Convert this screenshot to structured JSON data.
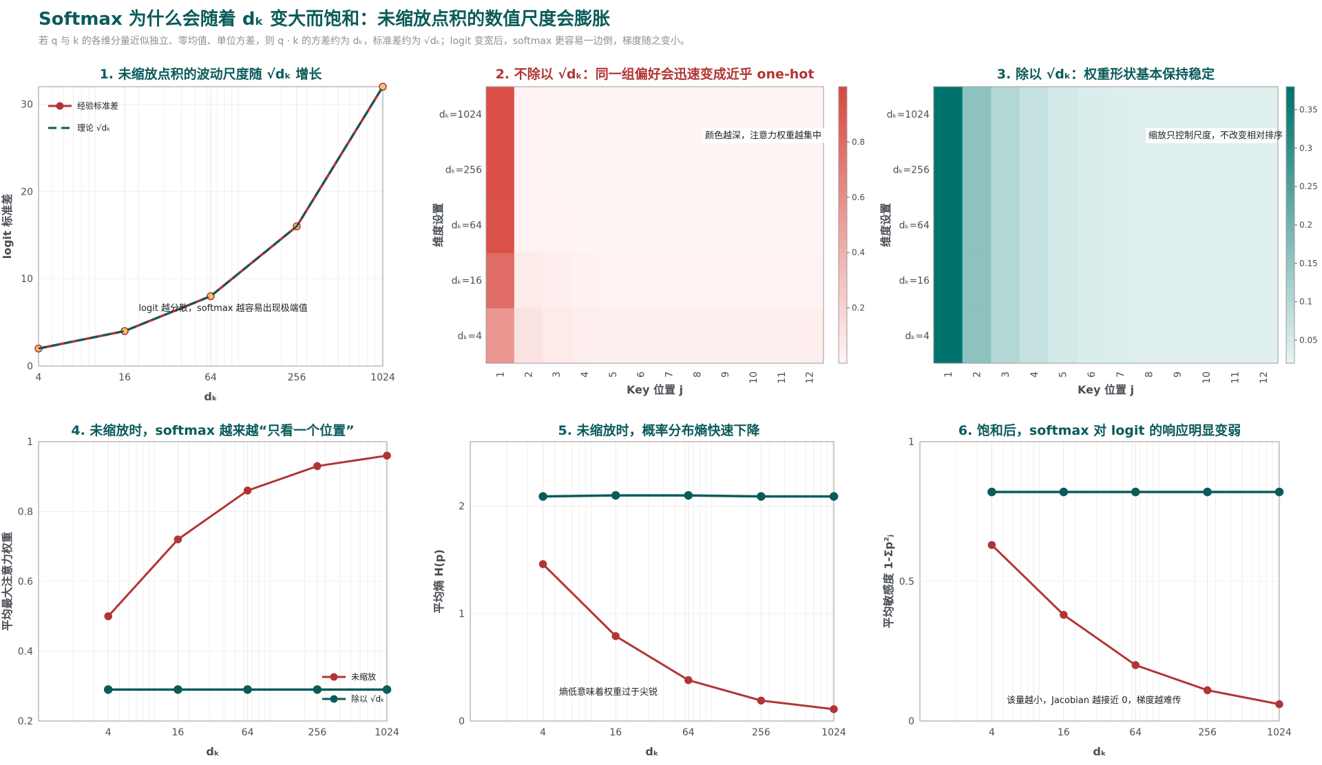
{
  "header": {
    "title": "Softmax 为什么会随着 dₖ 变大而饱和：未缩放点积的数值尺度会膨胀",
    "subtitle": "若 q 与 k 的各维分量近似独立、零均值、单位方差，则 q · k 的方差约为 dₖ，标准差约为 √dₖ；logit 变宽后，softmax 更容易一边倒，梯度随之变小。"
  },
  "colors": {
    "red": "#b23434",
    "teal": "#0b5b5b",
    "marker_fill": "#f6c06a"
  },
  "chart_data": [
    {
      "id": "p1",
      "type": "line",
      "title": "1. 未缩放点积的波动尺度随 √dₖ 增长",
      "xlabel": "dₖ",
      "ylabel": "logit 标准差",
      "x": [
        4,
        16,
        64,
        256,
        1024
      ],
      "x_scale": "log",
      "xlim": [
        4,
        1024
      ],
      "ylim": [
        0,
        32
      ],
      "yticks": [
        0,
        10,
        20,
        30
      ],
      "series": [
        {
          "name": "经验标准差",
          "values": [
            2.0,
            4.0,
            8.0,
            16.0,
            32.0
          ]
        },
        {
          "name": "理论 √dₖ",
          "values": [
            2,
            4,
            8,
            16,
            32
          ]
        }
      ],
      "annotation": "logit 越分散，softmax 越容易出现极端值",
      "legend": "top-left"
    },
    {
      "id": "p2",
      "type": "heatmap",
      "title": "2. 不除以 √dₖ：同一组偏好会迅速变成近乎 one-hot",
      "xlabel": "Key 位置 j",
      "ylabel": "维度设置",
      "columns": [
        "1",
        "2",
        "3",
        "4",
        "5",
        "6",
        "7",
        "8",
        "9",
        "10",
        "11",
        "12"
      ],
      "rows": [
        "dₖ=4",
        "dₖ=16",
        "dₖ=64",
        "dₖ=256",
        "dₖ=1024"
      ],
      "values": [
        [
          0.55,
          0.1,
          0.06,
          0.04,
          0.03,
          0.03,
          0.03,
          0.03,
          0.03,
          0.03,
          0.03,
          0.04
        ],
        [
          0.8,
          0.06,
          0.04,
          0.02,
          0.01,
          0.01,
          0.01,
          0.01,
          0.01,
          0.01,
          0.01,
          0.01
        ],
        [
          0.96,
          0.01,
          0.01,
          0.0,
          0.0,
          0.0,
          0.0,
          0.0,
          0.0,
          0.0,
          0.0,
          0.0
        ],
        [
          0.97,
          0.01,
          0.0,
          0.0,
          0.0,
          0.0,
          0.0,
          0.0,
          0.0,
          0.0,
          0.0,
          0.0
        ],
        [
          0.97,
          0.01,
          0.0,
          0.0,
          0.0,
          0.0,
          0.0,
          0.0,
          0.0,
          0.0,
          0.0,
          0.0
        ]
      ],
      "vlim": [
        0,
        1
      ],
      "colorbar_ticks": [
        0.2,
        0.4,
        0.6,
        0.8
      ],
      "annotation": "颜色越深，注意力权重越集中"
    },
    {
      "id": "p3",
      "type": "heatmap",
      "title": "3. 除以 √dₖ：权重形状基本保持稳定",
      "xlabel": "Key 位置 j",
      "ylabel": "维度设置",
      "columns": [
        "1",
        "2",
        "3",
        "4",
        "5",
        "6",
        "7",
        "8",
        "9",
        "10",
        "11",
        "12"
      ],
      "rows": [
        "dₖ=4",
        "dₖ=16",
        "dₖ=64",
        "dₖ=256",
        "dₖ=1024"
      ],
      "values": [
        [
          0.38,
          0.16,
          0.1,
          0.07,
          0.05,
          0.04,
          0.035,
          0.03,
          0.03,
          0.03,
          0.03,
          0.03
        ],
        [
          0.38,
          0.16,
          0.1,
          0.07,
          0.05,
          0.04,
          0.035,
          0.03,
          0.03,
          0.03,
          0.03,
          0.03
        ],
        [
          0.38,
          0.16,
          0.1,
          0.07,
          0.05,
          0.04,
          0.035,
          0.03,
          0.03,
          0.03,
          0.03,
          0.03
        ],
        [
          0.38,
          0.16,
          0.1,
          0.07,
          0.05,
          0.04,
          0.035,
          0.03,
          0.03,
          0.03,
          0.03,
          0.03
        ],
        [
          0.38,
          0.16,
          0.1,
          0.07,
          0.05,
          0.04,
          0.035,
          0.03,
          0.03,
          0.03,
          0.03,
          0.03
        ]
      ],
      "vlim": [
        0.02,
        0.38
      ],
      "colorbar_ticks": [
        0.05,
        0.1,
        0.15,
        0.2,
        0.25,
        0.3,
        0.35
      ],
      "annotation": "缩放只控制尺度，不改变相对排序"
    },
    {
      "id": "p4",
      "type": "line",
      "title": "4. 未缩放时，softmax 越来越“只看一个位置”",
      "xlabel": "dₖ",
      "ylabel": "平均最大注意力权重",
      "x": [
        4,
        16,
        64,
        256,
        1024
      ],
      "x_scale": "log",
      "xlim": [
        1,
        1024
      ],
      "ylim": [
        0.2,
        1.0
      ],
      "yticks": [
        0.2,
        0.4,
        0.6,
        0.8,
        1
      ],
      "series": [
        {
          "name": "未缩放",
          "values": [
            0.5,
            0.72,
            0.86,
            0.93,
            0.96
          ]
        },
        {
          "name": "除以 √dₖ",
          "values": [
            0.29,
            0.29,
            0.29,
            0.29,
            0.29
          ]
        }
      ],
      "legend": "bottom-right"
    },
    {
      "id": "p5",
      "type": "line",
      "title": "5. 未缩放时，概率分布熵快速下降",
      "xlabel": "dₖ",
      "ylabel": "平均熵 H(p)",
      "x": [
        4,
        16,
        64,
        256,
        1024
      ],
      "x_scale": "log",
      "xlim": [
        1,
        1024
      ],
      "ylim": [
        0,
        2.6
      ],
      "yticks": [
        0,
        1,
        2
      ],
      "series": [
        {
          "name": "未缩放",
          "values": [
            1.46,
            0.79,
            0.38,
            0.19,
            0.11
          ]
        },
        {
          "name": "除以 √dₖ",
          "values": [
            2.09,
            2.1,
            2.1,
            2.09,
            2.09
          ]
        }
      ],
      "annotation": "熵低意味着权重过于尖锐"
    },
    {
      "id": "p6",
      "type": "line",
      "title": "6. 饱和后，softmax 对 logit 的响应明显变弱",
      "xlabel": "dₖ",
      "ylabel": "平均敏感度 1-Σp²ⱼ",
      "x": [
        4,
        16,
        64,
        256,
        1024
      ],
      "x_scale": "log",
      "xlim": [
        1,
        1024
      ],
      "ylim": [
        0,
        1.0
      ],
      "yticks": [
        0,
        0.5,
        1
      ],
      "series": [
        {
          "name": "未缩放",
          "values": [
            0.63,
            0.38,
            0.2,
            0.11,
            0.06
          ]
        },
        {
          "name": "除以 √dₖ",
          "values": [
            0.82,
            0.82,
            0.82,
            0.82,
            0.82
          ]
        }
      ],
      "annotation": "该量越小，Jacobian 越接近 0，梯度越难传"
    }
  ]
}
